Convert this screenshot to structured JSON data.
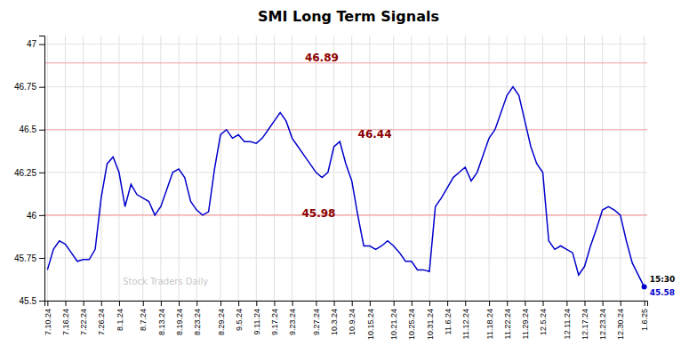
{
  "chart_data": {
    "type": "line",
    "title": "SMI Long Term Signals",
    "categories": [
      "7.10.24",
      null,
      null,
      "7.16.24",
      null,
      null,
      "7.22.24",
      null,
      null,
      "7.26.24",
      null,
      null,
      "8.1.24",
      null,
      null,
      null,
      "8.7.24",
      null,
      null,
      "8.13.24",
      null,
      null,
      "8.19.24",
      null,
      null,
      "8.23.24",
      null,
      null,
      null,
      "8.29.24",
      null,
      null,
      "9.5.24",
      null,
      null,
      "9.11.24",
      null,
      null,
      "9.17.24",
      null,
      null,
      "9.23.24",
      null,
      null,
      null,
      "9.27.24",
      null,
      null,
      "10.3.24",
      null,
      null,
      "10.9.24",
      null,
      null,
      "10.15.24",
      null,
      null,
      null,
      "10.21.24",
      null,
      null,
      "10.25.24",
      null,
      null,
      "10.31.24",
      null,
      null,
      "11.6.24",
      null,
      null,
      "11.12.24",
      null,
      null,
      null,
      "11.18.24",
      null,
      null,
      "11.22.24",
      null,
      null,
      "11.29.24",
      null,
      null,
      "12.5.24",
      null,
      null,
      null,
      "12.11.24",
      null,
      null,
      "12.17.24",
      null,
      null,
      "12.23.24",
      null,
      null,
      "12.30.24",
      null,
      null,
      null,
      "1.6.25"
    ],
    "values": [
      45.68,
      45.8,
      45.85,
      45.83,
      45.78,
      45.73,
      45.74,
      45.74,
      45.8,
      46.1,
      46.3,
      46.34,
      46.25,
      46.05,
      46.18,
      46.12,
      46.1,
      46.08,
      46.0,
      46.05,
      46.15,
      46.25,
      46.27,
      46.22,
      46.08,
      46.03,
      46.0,
      46.02,
      46.27,
      46.47,
      46.5,
      46.45,
      46.47,
      46.43,
      46.43,
      46.42,
      46.45,
      46.5,
      46.55,
      46.6,
      46.55,
      46.45,
      46.4,
      46.35,
      46.3,
      46.25,
      46.22,
      46.25,
      46.4,
      46.43,
      46.3,
      46.2,
      46.0,
      45.82,
      45.82,
      45.8,
      45.82,
      45.85,
      45.82,
      45.78,
      45.73,
      45.73,
      45.68,
      45.68,
      45.67,
      46.05,
      46.1,
      46.16,
      46.22,
      46.25,
      46.28,
      46.2,
      46.25,
      46.35,
      46.45,
      46.5,
      46.6,
      46.7,
      46.75,
      46.7,
      46.55,
      46.4,
      46.3,
      46.25,
      45.85,
      45.8,
      45.82,
      45.8,
      45.78,
      45.65,
      45.7,
      45.82,
      45.92,
      46.03,
      46.05,
      46.03,
      46.0,
      45.85,
      45.72,
      45.65,
      45.58
    ],
    "color": "#0000cc",
    "ylim": [
      45.5,
      47.05
    ],
    "yticks": [
      45.5,
      45.75,
      46,
      46.25,
      46.5,
      46.75,
      47
    ],
    "grid": true,
    "hlines": [
      {
        "value": 46.89,
        "color": "#f4a0a0"
      },
      {
        "value": 46.5,
        "color": "#f4a0a0"
      },
      {
        "value": 46.0,
        "color": "#f4a0a0"
      }
    ],
    "annotations": [
      {
        "text": "46.89",
        "y": 46.89,
        "color": "#8b0000"
      },
      {
        "text": "46.44",
        "y": 46.44,
        "color": "#8b0000"
      },
      {
        "text": "45.98",
        "y": 45.98,
        "color": "#8b0000"
      }
    ],
    "last_point": {
      "time": "15:30",
      "value": 45.58
    },
    "watermark": "Stock Traders Daily"
  }
}
